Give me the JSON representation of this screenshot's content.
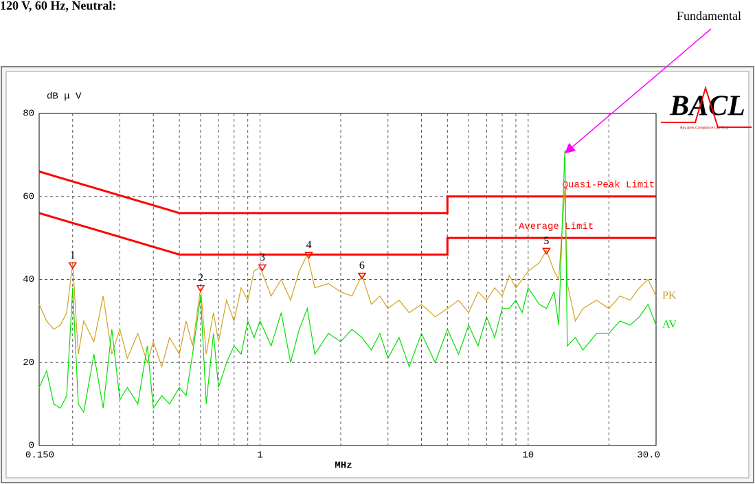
{
  "chart_data": {
    "type": "line",
    "title": "120 V, 60 Hz, Neutral:",
    "y_label": "dB μ V",
    "x_label": "MHz",
    "annotation": "Fundamental",
    "logo": {
      "text": "BACL",
      "subtitle": "Bay Area Compliance Lab Corp."
    },
    "xlog": true,
    "xlim": [
      0.15,
      30
    ],
    "xticks": [
      {
        "value": 0.15,
        "label": "0.150"
      },
      1,
      10,
      {
        "value": 30,
        "label": "30.0"
      }
    ],
    "xminor_ticks": [
      0.2,
      0.3,
      0.4,
      0.5,
      0.6,
      0.7,
      0.8,
      0.9,
      2,
      3,
      4,
      5,
      6,
      7,
      8,
      9,
      20
    ],
    "ylim": [
      0,
      80
    ],
    "yticks": [
      0,
      20,
      40,
      60,
      80
    ],
    "grid": true,
    "series": [
      {
        "name": "Quasi-Peak Limit",
        "color": "#ff0000",
        "x": [
          0.15,
          0.5,
          5,
          5,
          30
        ],
        "values": [
          66,
          56,
          56,
          60,
          60
        ]
      },
      {
        "name": "Average Limit",
        "color": "#ff0000",
        "x": [
          0.15,
          0.5,
          5,
          5,
          30
        ],
        "values": [
          56,
          46,
          46,
          50,
          50
        ]
      },
      {
        "name": "PK",
        "color": "#d4a020",
        "x": [
          0.15,
          0.16,
          0.17,
          0.18,
          0.19,
          0.2,
          0.21,
          0.22,
          0.24,
          0.26,
          0.28,
          0.3,
          0.32,
          0.35,
          0.38,
          0.4,
          0.43,
          0.46,
          0.5,
          0.53,
          0.56,
          0.6,
          0.63,
          0.67,
          0.7,
          0.75,
          0.8,
          0.85,
          0.9,
          0.95,
          1.0,
          1.1,
          1.2,
          1.3,
          1.4,
          1.5,
          1.6,
          1.8,
          2.0,
          2.2,
          2.4,
          2.6,
          2.8,
          3.0,
          3.3,
          3.6,
          4.0,
          4.5,
          5.0,
          5.5,
          6.0,
          6.5,
          7.0,
          7.5,
          8.0,
          8.5,
          9.0,
          9.5,
          10,
          11,
          11.7,
          12.5,
          13,
          13.7,
          14,
          15,
          16,
          18,
          20,
          22,
          24,
          26,
          28,
          30
        ],
        "values": [
          34,
          30,
          28,
          29,
          32,
          44,
          22,
          30,
          25,
          36,
          22,
          28,
          21,
          27,
          20,
          25,
          19,
          26,
          22,
          30,
          24,
          38,
          22,
          32,
          25,
          35,
          30,
          38,
          35,
          42,
          43,
          36,
          40,
          35,
          42,
          46,
          38,
          39,
          37,
          36,
          41,
          34,
          36,
          33,
          35,
          32,
          34,
          31,
          33,
          35,
          32,
          37,
          35,
          38,
          36,
          41,
          38,
          40,
          42,
          44,
          47,
          42,
          40,
          62,
          39,
          30,
          33,
          35,
          33,
          36,
          35,
          38,
          40,
          36
        ]
      },
      {
        "name": "AV",
        "color": "#00e000",
        "x": [
          0.15,
          0.16,
          0.17,
          0.18,
          0.19,
          0.2,
          0.21,
          0.22,
          0.24,
          0.26,
          0.28,
          0.3,
          0.32,
          0.35,
          0.38,
          0.4,
          0.43,
          0.46,
          0.5,
          0.53,
          0.56,
          0.6,
          0.63,
          0.67,
          0.7,
          0.75,
          0.8,
          0.85,
          0.9,
          0.95,
          1.0,
          1.1,
          1.2,
          1.3,
          1.4,
          1.5,
          1.6,
          1.8,
          2.0,
          2.2,
          2.4,
          2.6,
          2.8,
          3.0,
          3.3,
          3.6,
          4.0,
          4.5,
          5.0,
          5.5,
          6.0,
          6.5,
          7.0,
          7.5,
          8.0,
          8.5,
          9.0,
          9.5,
          10,
          11,
          11.7,
          12.5,
          13,
          13.7,
          14,
          15,
          16,
          18,
          20,
          22,
          24,
          26,
          28,
          30
        ],
        "values": [
          14,
          18,
          10,
          9,
          12,
          38,
          10,
          8,
          22,
          9,
          28,
          11,
          14,
          10,
          24,
          9,
          12,
          10,
          14,
          12,
          22,
          36,
          10,
          27,
          14,
          20,
          24,
          22,
          30,
          26,
          30,
          24,
          32,
          20,
          28,
          33,
          22,
          27,
          25,
          28,
          26,
          23,
          27,
          21,
          26,
          19,
          27,
          20,
          28,
          22,
          29,
          24,
          31,
          26,
          33,
          33,
          35,
          32,
          38,
          34,
          33,
          37,
          29,
          71,
          24,
          26,
          23,
          27,
          27,
          30,
          29,
          31,
          34,
          29
        ]
      }
    ],
    "markers": {
      "color": "#ff0000",
      "labels": [
        "1",
        "2",
        "3",
        "4",
        "5",
        "6"
      ],
      "x": [
        0.2,
        0.6,
        1.02,
        1.52,
        11.7,
        2.4
      ],
      "values": [
        44,
        38.5,
        43.5,
        46.5,
        47.5,
        41.5
      ]
    }
  }
}
